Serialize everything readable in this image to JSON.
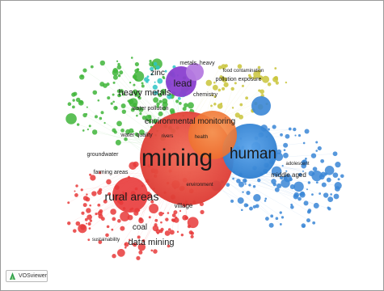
{
  "app": {
    "badge_label": "VOSviewer"
  },
  "colors": {
    "red_cluster": "#e83a3a",
    "blue_cluster": "#3a86d6",
    "green_cluster": "#3fb53a",
    "yellow_cluster": "#c9c43a",
    "purple_cluster": "#b57be0",
    "cyan_cluster": "#2ec4c4",
    "orange_cluster": "#f07a2e"
  },
  "network": {
    "major_terms": [
      {
        "text": "mining",
        "cluster": "red"
      },
      {
        "text": "human",
        "cluster": "blue"
      },
      {
        "text": "rural areas",
        "cluster": "red"
      },
      {
        "text": "data mining",
        "cluster": "red"
      },
      {
        "text": "coal",
        "cluster": "red"
      },
      {
        "text": "village",
        "cluster": "red"
      },
      {
        "text": "heavy metals",
        "cluster": "green"
      },
      {
        "text": "lead",
        "cluster": "purple"
      },
      {
        "text": "zinc",
        "cluster": "green"
      },
      {
        "text": "metals, heavy",
        "cluster": "purple"
      },
      {
        "text": "chemistry",
        "cluster": "purple"
      },
      {
        "text": "environmental monitoring",
        "cluster": "green"
      },
      {
        "text": "water pollution",
        "cluster": "green"
      },
      {
        "text": "water quality",
        "cluster": "green"
      },
      {
        "text": "rivers",
        "cluster": "green"
      },
      {
        "text": "health",
        "cluster": "orange"
      },
      {
        "text": "pollution exposure",
        "cluster": "yellow"
      },
      {
        "text": "food contamination",
        "cluster": "yellow"
      },
      {
        "text": "adolescent",
        "cluster": "blue"
      },
      {
        "text": "middle aged",
        "cluster": "blue"
      },
      {
        "text": "environment",
        "cluster": "red"
      },
      {
        "text": "groundwater",
        "cluster": "green"
      },
      {
        "text": "farming areas",
        "cluster": "red"
      },
      {
        "text": "sustainability",
        "cluster": "red"
      }
    ]
  }
}
